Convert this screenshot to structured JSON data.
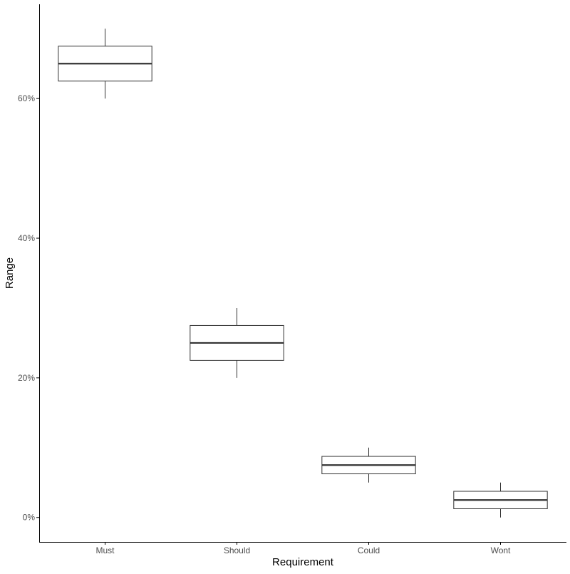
{
  "chart_data": {
    "type": "boxplot",
    "title": "",
    "xlabel": "Requirement",
    "ylabel": "Range",
    "categories": [
      "Must",
      "Should",
      "Could",
      "Wont"
    ],
    "boxes": [
      {
        "category": "Must",
        "min": 60,
        "q1": 62.5,
        "median": 65,
        "q3": 67.5,
        "max": 70
      },
      {
        "category": "Should",
        "min": 20,
        "q1": 22.5,
        "median": 25,
        "q3": 27.5,
        "max": 30
      },
      {
        "category": "Could",
        "min": 5,
        "q1": 6.25,
        "median": 7.5,
        "q3": 8.75,
        "max": 10
      },
      {
        "category": "Wont",
        "min": 0,
        "q1": 1.25,
        "median": 2.5,
        "q3": 3.75,
        "max": 5
      }
    ],
    "y_ticks": [
      0,
      20,
      40,
      60
    ],
    "y_tick_labels": [
      "0%",
      "20%",
      "40%",
      "60%"
    ],
    "ylim": [
      -3.5,
      73.5
    ],
    "grid": false,
    "legend": "none",
    "colors": {
      "box_fill": "#ffffff",
      "box_stroke": "#333333",
      "axis": "#000000",
      "tick_text": "#4d4d4d",
      "label_text": "#000000"
    }
  }
}
